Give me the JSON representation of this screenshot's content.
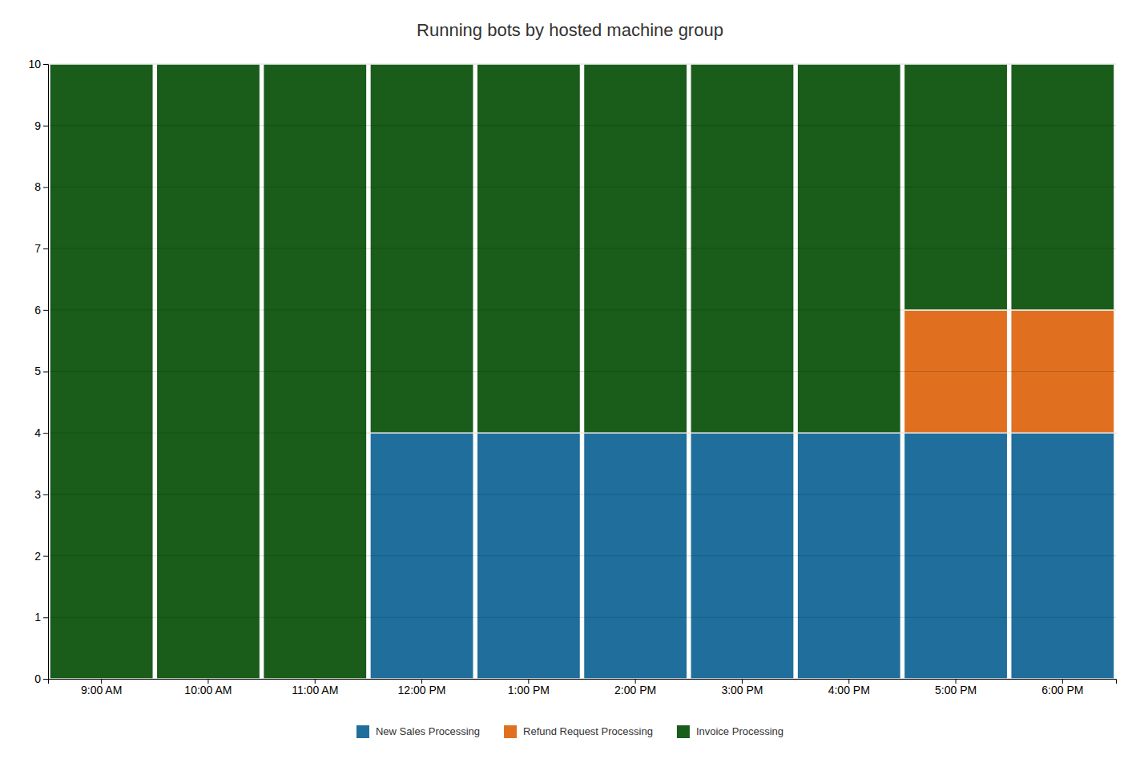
{
  "chart_data": {
    "type": "bar",
    "title": "Running bots by hosted machine group",
    "categories": [
      "9:00 AM",
      "10:00 AM",
      "11:00 AM",
      "12:00 PM",
      "1:00 PM",
      "2:00 PM",
      "3:00 PM",
      "4:00 PM",
      "5:00 PM",
      "6:00 PM"
    ],
    "series": [
      {
        "name": "New Sales Processing",
        "color": "#1f6e9c",
        "values": [
          0,
          0,
          0,
          4,
          4,
          4,
          4,
          4,
          4,
          4
        ]
      },
      {
        "name": "Refund Request Processing",
        "color": "#e07020",
        "values": [
          0,
          0,
          0,
          0,
          0,
          0,
          0,
          0,
          2,
          2
        ]
      },
      {
        "name": "Invoice Processing",
        "color": "#1a5c1a",
        "values": [
          10,
          10,
          10,
          6,
          6,
          6,
          6,
          6,
          4,
          4
        ]
      }
    ],
    "stacked": true,
    "ylim": [
      0,
      10
    ],
    "yticks": [
      0,
      1,
      2,
      3,
      4,
      5,
      6,
      7,
      8,
      9,
      10
    ],
    "grid": true,
    "legend": "bottom"
  }
}
